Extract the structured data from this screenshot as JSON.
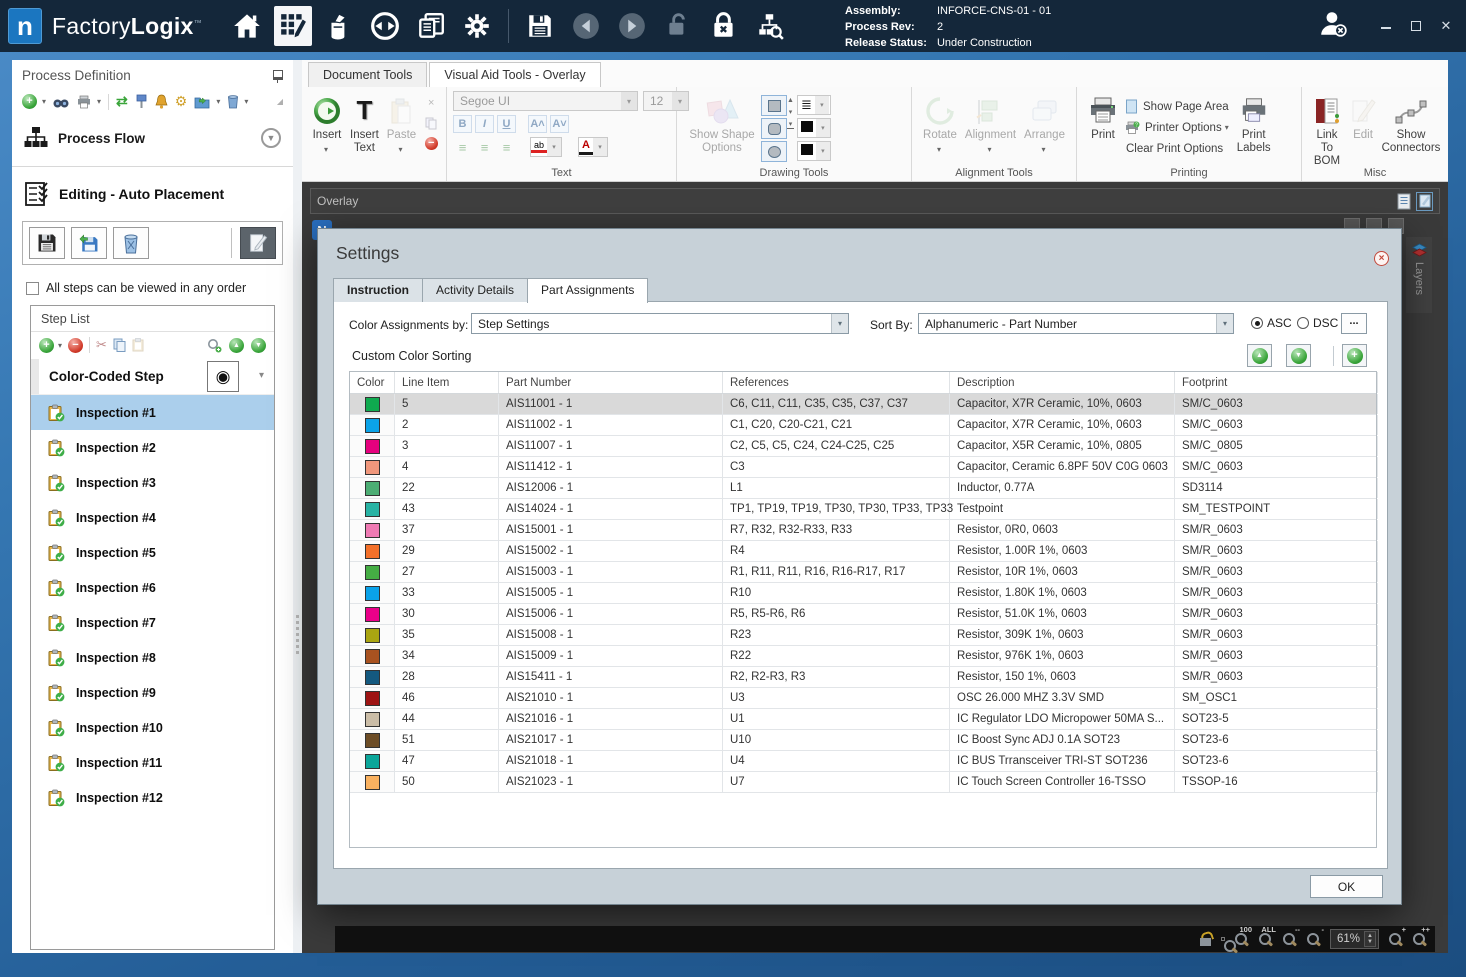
{
  "icons": {
    "caret-down": "▾",
    "chevron-down": "⌄",
    "up": "▲",
    "down": "▼",
    "plus": "+",
    "minus": "−",
    "close": "×",
    "check": "✓",
    "cut": "✂",
    "exchange": "⇄",
    "gear": "⚙",
    "target": "◉",
    "left-tri": "◀",
    "right-tri": "▶",
    "lines": "≡",
    "bars": "≣",
    "collapse": "◢"
  },
  "titlebar": {
    "logo_letter": "n",
    "app_name_1": "Factory",
    "app_name_2": "Logix",
    "trademark": "™",
    "assembly_label": "Assembly:",
    "assembly_value": "INFORCE-CNS-01 - 01",
    "process_rev_label": "Process Rev:",
    "process_rev_value": "2",
    "release_status_label": "Release Status:",
    "release_status_value": "Under Construction",
    "close_glyph": "✕"
  },
  "sidebar": {
    "title": "Process Definition",
    "process_flow": "Process Flow",
    "editing": "Editing - Auto Placement",
    "order_checkbox": "All steps can be viewed in any order",
    "step_list_title": "Step List",
    "selected_step_name": "Color-Coded Step",
    "selected_step_index": 0,
    "steps": [
      "Inspection #1",
      "Inspection #2",
      "Inspection #3",
      "Inspection #4",
      "Inspection #5",
      "Inspection #6",
      "Inspection #7",
      "Inspection #8",
      "Inspection #9",
      "Inspection #10",
      "Inspection #11",
      "Inspection #12"
    ]
  },
  "ribbon": {
    "tabs": [
      "Document Tools",
      "Visual Aid Tools - Overlay"
    ],
    "active_tab": 1,
    "insert": "Insert",
    "insert_text": "Insert Text",
    "paste": "Paste",
    "font_name": "Segoe UI",
    "font_size": "12",
    "highlight_glyph": "ab",
    "font_color_glyph": "A",
    "show_shape_options": "Show Shape Options",
    "rotate": "Rotate",
    "alignment": "Alignment",
    "arrange": "Arrange",
    "print": "Print",
    "show_page_area": "Show Page Area",
    "printer_options": "Printer Options",
    "clear_print_options": "Clear Print Options",
    "print_labels": "Print Labels",
    "link_to_bom": "Link To BOM",
    "edit": "Edit",
    "show_connectors": "Show Connectors",
    "group_text": "Text",
    "group_drawing": "Drawing Tools",
    "group_alignment": "Alignment Tools",
    "group_printing": "Printing",
    "group_misc": "Misc"
  },
  "canvas": {
    "overlay_label": "Overlay",
    "layers_label": "Layers",
    "n_badge": "N"
  },
  "dialog": {
    "title": "Settings",
    "tabs": [
      "Instruction",
      "Activity Details",
      "Part Assignments"
    ],
    "active_tab": 2,
    "color_assignments_label": "Color Assignments by:",
    "color_assignments_value": "Step Settings",
    "sort_by_label": "Sort By:",
    "sort_by_value": "Alphanumeric - Part Number",
    "asc": "ASC",
    "dsc": "DSC",
    "more": "...",
    "custom_color_sorting": "Custom Color Sorting",
    "ok": "OK",
    "table": {
      "columns": [
        "Color",
        "Line Item",
        "Part Number",
        "References",
        "Description",
        "Footprint"
      ],
      "selected_row": 0,
      "rows": [
        {
          "color": "#0faa4f",
          "line": "5",
          "part": "AIS11001 - 1",
          "refs": "C6, C11, C11, C35, C35, C37, C37",
          "desc": "Capacitor,  X7R Ceramic, 10%, 0603",
          "fp": "SM/C_0603"
        },
        {
          "color": "#0ba3e8",
          "line": "2",
          "part": "AIS11002 - 1",
          "refs": "C1, C20, C20-C21, C21",
          "desc": "Capacitor,  X7R Ceramic, 10%, 0603",
          "fp": "SM/C_0603"
        },
        {
          "color": "#e5017e",
          "line": "3",
          "part": "AIS11007 - 1",
          "refs": "C2, C5, C5, C24, C24-C25, C25",
          "desc": "Capacitor,  X5R Ceramic, 10%, 0805",
          "fp": "SM/C_0805"
        },
        {
          "color": "#f0977c",
          "line": "4",
          "part": "AIS11412 - 1",
          "refs": "C3",
          "desc": "Capacitor, Ceramic 6.8PF 50V C0G 0603",
          "fp": "SM/C_0603"
        },
        {
          "color": "#4cad74",
          "line": "22",
          "part": "AIS12006 - 1",
          "refs": "L1",
          "desc": "Inductor, 0.77A",
          "fp": "SD3114"
        },
        {
          "color": "#28b3a4",
          "line": "43",
          "part": "AIS14024 - 1",
          "refs": "TP1, TP19, TP19, TP30, TP30, TP33, TP33",
          "desc": "Testpoint",
          "fp": "SM_TESTPOINT"
        },
        {
          "color": "#ef7ab3",
          "line": "37",
          "part": "AIS15001 - 1",
          "refs": "R7, R32, R32-R33, R33",
          "desc": "Resistor, 0R0, 0603",
          "fp": "SM/R_0603"
        },
        {
          "color": "#f3702a",
          "line": "29",
          "part": "AIS15002 - 1",
          "refs": "R4",
          "desc": "Resistor, 1.00R 1%, 0603",
          "fp": "SM/R_0603"
        },
        {
          "color": "#45ad44",
          "line": "27",
          "part": "AIS15003 - 1",
          "refs": "R1, R11, R11, R16, R16-R17, R17",
          "desc": "Resistor, 10R 1%, 0603",
          "fp": "SM/R_0603"
        },
        {
          "color": "#0aa2e9",
          "line": "33",
          "part": "AIS15005 - 1",
          "refs": "R10",
          "desc": "Resistor, 1.80K 1%, 0603",
          "fp": "SM/R_0603"
        },
        {
          "color": "#ea0089",
          "line": "30",
          "part": "AIS15006 - 1",
          "refs": "R5, R5-R6, R6",
          "desc": "Resistor, 51.0K 1%, 0603",
          "fp": "SM/R_0603"
        },
        {
          "color": "#aaa511",
          "line": "35",
          "part": "AIS15008 - 1",
          "refs": "R23",
          "desc": "Resistor, 309K 1%, 0603",
          "fp": "SM/R_0603"
        },
        {
          "color": "#a85220",
          "line": "34",
          "part": "AIS15009 - 1",
          "refs": "R22",
          "desc": "Resistor, 976K 1%, 0603",
          "fp": "SM/R_0603"
        },
        {
          "color": "#14597f",
          "line": "28",
          "part": "AIS15411 - 1",
          "refs": "R2, R2-R3, R3",
          "desc": "Resistor, 150 1%, 0603",
          "fp": "SM/R_0603"
        },
        {
          "color": "#9e1414",
          "line": "46",
          "part": "AIS21010 - 1",
          "refs": "U3",
          "desc": "OSC 26.000 MHZ 3.3V SMD",
          "fp": "SM_OSC1"
        },
        {
          "color": "#cbbda7",
          "line": "44",
          "part": "AIS21016 - 1",
          "refs": "U1",
          "desc": "IC Regulator LDO Micropower 50MA S...",
          "fp": "SOT23-5"
        },
        {
          "color": "#6d4d26",
          "line": "51",
          "part": "AIS21017 - 1",
          "refs": "U10",
          "desc": "IC Boost Sync ADJ 0.1A SOT23",
          "fp": "SOT23-6"
        },
        {
          "color": "#0ba69a",
          "line": "47",
          "part": "AIS21018 - 1",
          "refs": "U4",
          "desc": "IC BUS Trransceiver TRI-ST SOT236",
          "fp": "SOT23-6"
        },
        {
          "color": "#f9b160",
          "line": "50",
          "part": "AIS21023 - 1",
          "refs": "U7",
          "desc": "IC Touch Screen Controller 16-TSSO",
          "fp": "TSSOP-16"
        }
      ]
    }
  },
  "statusbar": {
    "hundred": "100",
    "all": "ALL",
    "out_double": "--",
    "out": "-",
    "in": "+",
    "in_double": "++",
    "zoom": "61%"
  }
}
